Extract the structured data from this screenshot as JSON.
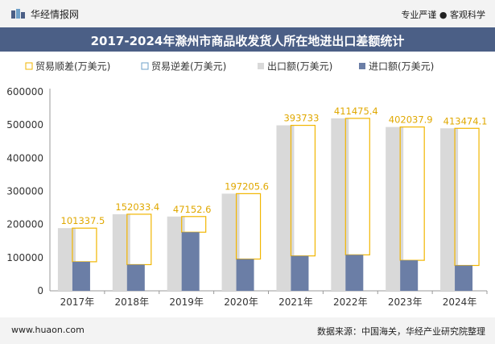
{
  "header": {
    "logo_text": "华经情报网",
    "tagline": "专业严谨 ● 客观科学"
  },
  "footer": {
    "website": "www.huaon.com",
    "source": "数据来源：中国海关，华经产业研究院整理"
  },
  "colors": {
    "title_bar": "#4b5f86",
    "export": "#d9d9d9",
    "import": "#6b7ea6",
    "surplus": "#f2b600",
    "deficit": "#6fa0c8"
  },
  "chart_data": {
    "type": "bar",
    "title": "2017-2024年滁州市商品收发货人所在地进出口差额统计",
    "categories": [
      "2017年",
      "2018年",
      "2019年",
      "2020年",
      "2021年",
      "2022年",
      "2023年",
      "2024年"
    ],
    "series": [
      {
        "name": "贸易顺差(万美元)",
        "values": [
          101337.5,
          152033.4,
          47152.6,
          197205.6,
          393733,
          411475.4,
          402037.9,
          413474.1
        ]
      },
      {
        "name": "贸易逆差(万美元)",
        "values": [
          0,
          0,
          0,
          0,
          0,
          0,
          0,
          0
        ]
      },
      {
        "name": "出口额(万美元)",
        "values": [
          189000,
          231000,
          224000,
          293000,
          499000,
          520000,
          494000,
          490000
        ]
      },
      {
        "name": "进口额(万美元)",
        "values": [
          87700,
          79000,
          176800,
          95800,
          105300,
          108500,
          92000,
          76500
        ]
      }
    ],
    "data_labels": [
      "101337.5",
      "152033.4",
      "47152.6",
      "197205.6",
      "393733",
      "411475.4",
      "402037.9",
      "413474.1"
    ],
    "yticks": [
      "0",
      "100000",
      "200000",
      "300000",
      "400000",
      "500000",
      "600000"
    ],
    "ylim": [
      0,
      600000
    ],
    "legend_position": "top"
  }
}
